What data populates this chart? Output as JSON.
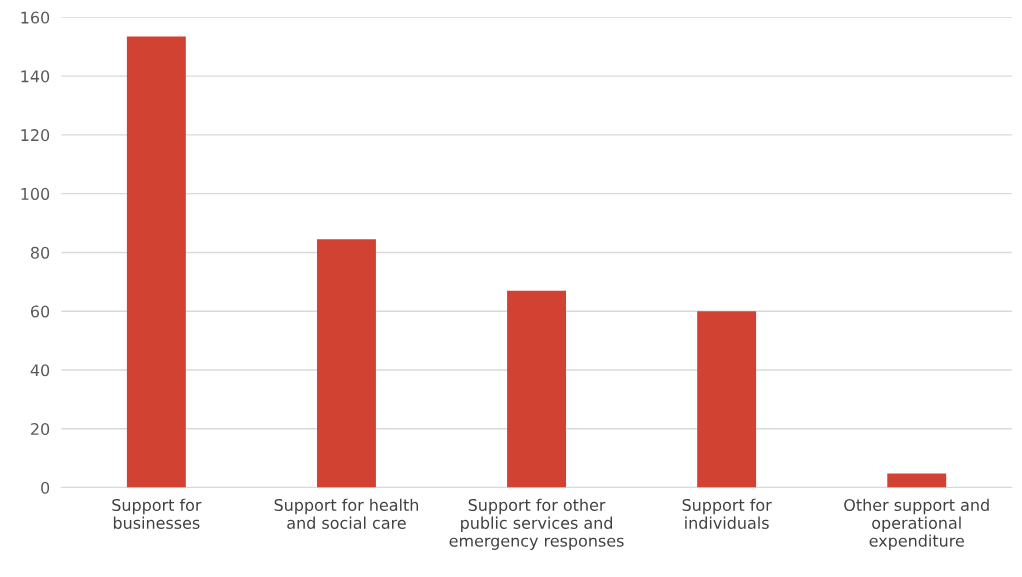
{
  "chart_data": {
    "type": "bar",
    "categories": [
      "Support for\nbusinesses",
      "Support for health\nand social care",
      "Support for other\npublic services and\nemergency responses",
      "Support for\nindividuals",
      "Other support and\noperational\nexpenditure"
    ],
    "values": [
      153.5,
      84.5,
      67,
      60,
      4.8
    ],
    "color": "#d14232",
    "ylim": [
      0,
      160
    ],
    "yticks": [
      0,
      20,
      40,
      60,
      80,
      100,
      120,
      140,
      160
    ],
    "grid": "y"
  }
}
